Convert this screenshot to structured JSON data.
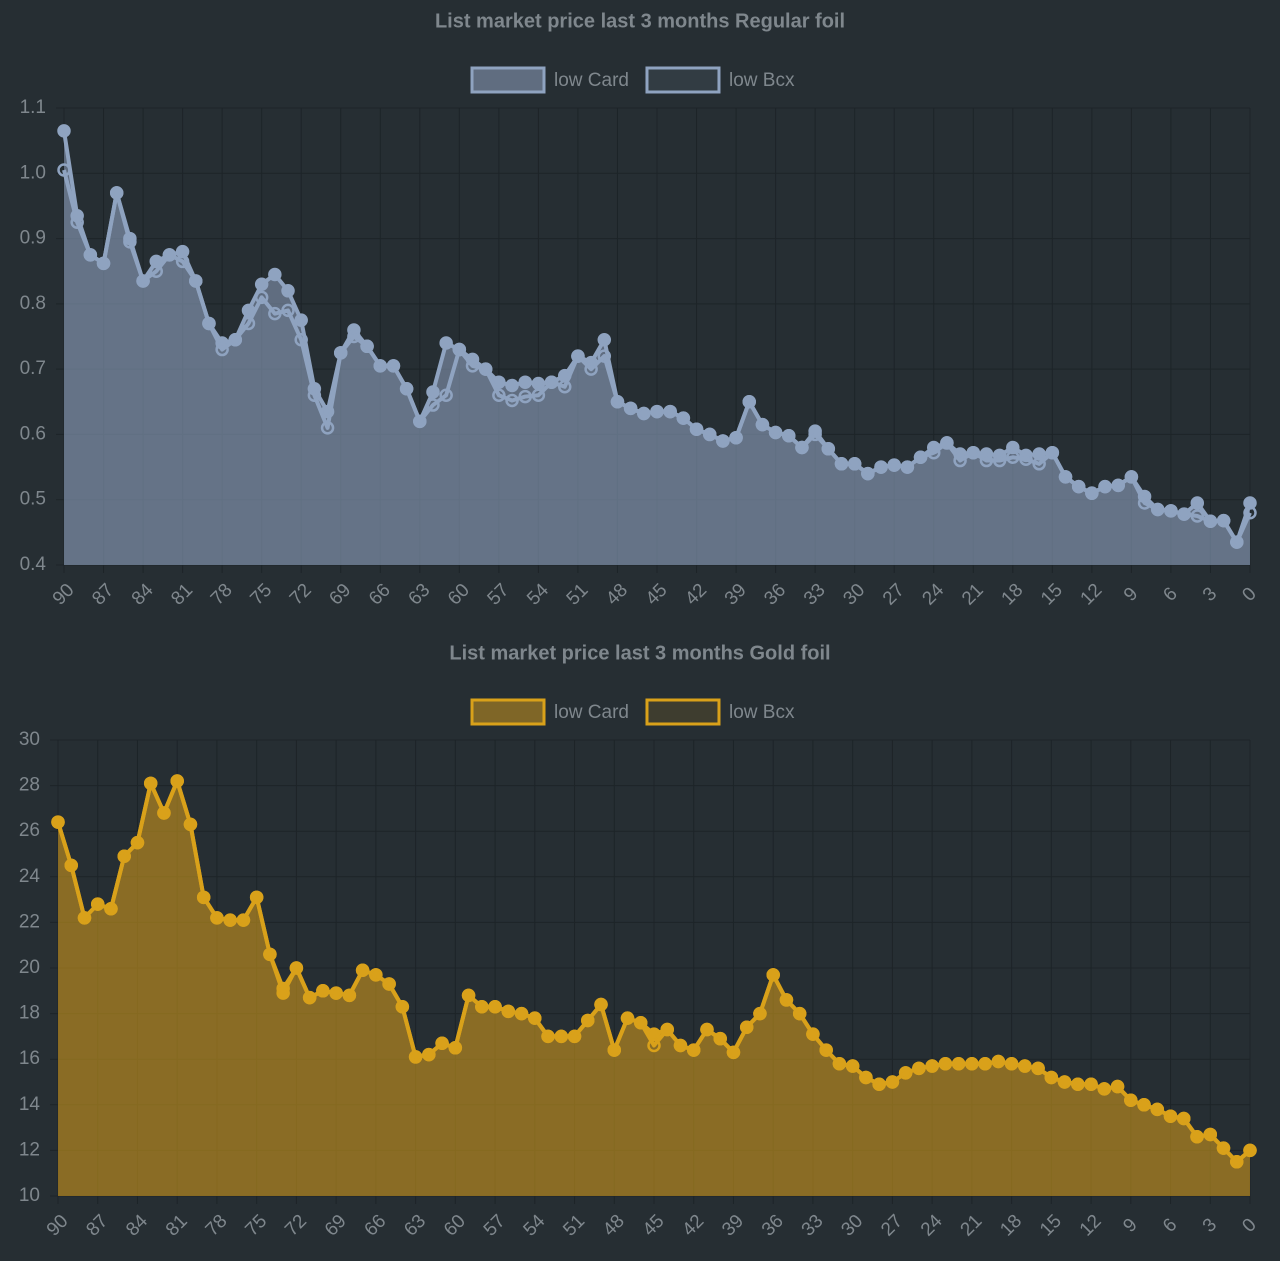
{
  "chart_data": {
    "charts": [
      {
        "type": "line",
        "title": "List market price last 3 months Regular foil",
        "categories": [
          "90",
          null,
          null,
          "87",
          null,
          null,
          "84",
          null,
          null,
          "81",
          null,
          null,
          "78",
          null,
          null,
          "75",
          null,
          null,
          "72",
          null,
          null,
          "69",
          null,
          null,
          "66",
          null,
          null,
          "63",
          null,
          null,
          "60",
          null,
          null,
          "57",
          null,
          null,
          "54",
          null,
          null,
          "51",
          null,
          null,
          "48",
          null,
          null,
          "45",
          null,
          null,
          "42",
          null,
          null,
          "39",
          null,
          null,
          "36",
          null,
          null,
          "33",
          null,
          null,
          "30",
          null,
          null,
          "27",
          null,
          null,
          "24",
          null,
          null,
          "21",
          null,
          null,
          "18",
          null,
          null,
          "15",
          null,
          null,
          "12",
          null,
          null,
          "9",
          null,
          null,
          "6",
          null,
          null,
          "3",
          null,
          null,
          "0"
        ],
        "series": [
          {
            "name": "low Card",
            "color": "#8fa3c0",
            "fill": "rgba(143,163,192,0.55)",
            "values": [
              1.065,
              0.935,
              0.875,
              0.862,
              0.97,
              0.9,
              0.835,
              0.865,
              0.875,
              0.88,
              0.835,
              0.77,
              0.74,
              0.745,
              0.79,
              0.83,
              0.845,
              0.82,
              0.775,
              0.67,
              0.635,
              0.725,
              0.76,
              0.735,
              0.705,
              0.705,
              0.67,
              0.62,
              0.665,
              0.74,
              0.73,
              0.715,
              0.7,
              0.68,
              0.675,
              0.68,
              0.678,
              0.68,
              0.69,
              0.72,
              0.71,
              0.745,
              0.65,
              0.64,
              0.632,
              0.635,
              0.635,
              0.625,
              0.608,
              0.6,
              0.59,
              0.595,
              0.65,
              0.615,
              0.603,
              0.598,
              0.58,
              0.605,
              0.578,
              0.555,
              0.555,
              0.54,
              0.55,
              0.553,
              0.55,
              0.565,
              0.58,
              0.587,
              0.57,
              0.572,
              0.57,
              0.568,
              0.58,
              0.568,
              0.57,
              0.572,
              0.535,
              0.52,
              0.51,
              0.52,
              0.522,
              0.535,
              0.505,
              0.485,
              0.483,
              0.478,
              0.495,
              0.467,
              0.468,
              0.435,
              0.495
            ]
          },
          {
            "name": "low Bcx",
            "color": "#8fa3c0",
            "fill": "rgba(143,163,192,0.12)",
            "values": [
              1.005,
              0.925,
              0.875,
              0.862,
              0.97,
              0.895,
              0.835,
              0.85,
              0.875,
              0.865,
              0.835,
              0.77,
              0.73,
              0.745,
              0.77,
              0.81,
              0.785,
              0.79,
              0.745,
              0.66,
              0.61,
              0.725,
              0.75,
              0.735,
              0.705,
              0.705,
              0.67,
              0.62,
              0.645,
              0.66,
              0.73,
              0.705,
              0.7,
              0.66,
              0.652,
              0.658,
              0.66,
              0.68,
              0.673,
              0.72,
              0.7,
              0.72,
              0.65,
              0.64,
              0.632,
              0.635,
              0.635,
              0.625,
              0.608,
              0.6,
              0.59,
              0.595,
              0.65,
              0.615,
              0.603,
              0.598,
              0.58,
              0.6,
              0.578,
              0.555,
              0.555,
              0.54,
              0.55,
              0.553,
              0.55,
              0.565,
              0.572,
              0.587,
              0.56,
              0.572,
              0.56,
              0.56,
              0.565,
              0.562,
              0.555,
              0.572,
              0.535,
              0.52,
              0.51,
              0.52,
              0.522,
              0.535,
              0.495,
              0.485,
              0.483,
              0.478,
              0.475,
              0.467,
              0.468,
              0.435,
              0.48
            ]
          }
        ],
        "ylim": [
          0.4,
          1.1
        ],
        "yticks": [
          0.4,
          0.5,
          0.6,
          0.7,
          0.8,
          0.9,
          {
            "value": 1,
            "label": "1.0"
          },
          1.1
        ],
        "grid": true
      },
      {
        "type": "line",
        "title": "List market price last 3 months Gold foil",
        "categories": [
          "90",
          null,
          null,
          "87",
          null,
          null,
          "84",
          null,
          null,
          "81",
          null,
          null,
          "78",
          null,
          null,
          "75",
          null,
          null,
          "72",
          null,
          null,
          "69",
          null,
          null,
          "66",
          null,
          null,
          "63",
          null,
          null,
          "60",
          null,
          null,
          "57",
          null,
          null,
          "54",
          null,
          null,
          "51",
          null,
          null,
          "48",
          null,
          null,
          "45",
          null,
          null,
          "42",
          null,
          null,
          "39",
          null,
          null,
          "36",
          null,
          null,
          "33",
          null,
          null,
          "30",
          null,
          null,
          "27",
          null,
          null,
          "24",
          null,
          null,
          "21",
          null,
          null,
          "18",
          null,
          null,
          "15",
          null,
          null,
          "12",
          null,
          null,
          "9",
          null,
          null,
          "6",
          null,
          null,
          "3",
          null,
          null,
          "0"
        ],
        "series": [
          {
            "name": "low Card",
            "color": "#d9a11a",
            "fill": "rgba(200,150,30,0.55)",
            "values": [
              26.4,
              24.5,
              22.2,
              22.8,
              22.6,
              24.9,
              25.5,
              28.1,
              26.8,
              28.2,
              26.3,
              23.1,
              22.2,
              22.1,
              22.1,
              23.1,
              20.6,
              18.9,
              20.0,
              18.7,
              19.0,
              18.9,
              18.8,
              19.9,
              19.7,
              19.3,
              18.3,
              16.1,
              16.2,
              16.7,
              16.5,
              18.8,
              18.3,
              18.3,
              18.1,
              18.0,
              17.8,
              17.0,
              17.0,
              17.0,
              17.7,
              18.4,
              16.4,
              17.8,
              17.6,
              17.1,
              17.3,
              16.6,
              16.4,
              17.3,
              16.9,
              16.3,
              17.4,
              18.0,
              19.7,
              18.6,
              18.0,
              17.1,
              16.4,
              15.8,
              15.7,
              15.2,
              14.9,
              15.0,
              15.4,
              15.6,
              15.7,
              15.8,
              15.8,
              15.8,
              15.8,
              15.9,
              15.8,
              15.7,
              15.6,
              15.2,
              15.0,
              14.9,
              14.9,
              14.7,
              14.8,
              14.2,
              14.0,
              13.8,
              13.5,
              13.4,
              12.6,
              12.7,
              12.1,
              11.5,
              12.0
            ]
          },
          {
            "name": "low Bcx",
            "color": "#d9a11a",
            "fill": "rgba(200,150,30,0.15)",
            "values": [
              26.4,
              24.5,
              22.2,
              22.8,
              22.6,
              24.9,
              25.5,
              28.1,
              26.8,
              28.2,
              26.3,
              23.1,
              22.2,
              22.1,
              22.1,
              23.1,
              20.6,
              19.1,
              20.0,
              18.7,
              19.0,
              18.9,
              18.8,
              19.9,
              19.7,
              19.3,
              18.3,
              16.1,
              16.2,
              16.7,
              16.5,
              18.8,
              18.3,
              18.3,
              18.1,
              18.0,
              17.8,
              17.0,
              17.0,
              17.0,
              17.7,
              18.4,
              16.4,
              17.8,
              17.6,
              16.6,
              17.3,
              16.6,
              16.4,
              17.3,
              16.9,
              16.3,
              17.4,
              18.0,
              19.7,
              18.6,
              18.0,
              17.1,
              16.4,
              15.8,
              15.7,
              15.2,
              14.9,
              15.0,
              15.4,
              15.6,
              15.7,
              15.8,
              15.8,
              15.8,
              15.8,
              15.9,
              15.8,
              15.7,
              15.6,
              15.2,
              15.0,
              14.9,
              14.9,
              14.7,
              14.8,
              14.2,
              14.0,
              13.8,
              13.5,
              13.4,
              12.6,
              12.7,
              12.1,
              11.5,
              12.0
            ]
          }
        ],
        "ylim": [
          10,
          30
        ],
        "yticks": [
          10,
          12,
          14,
          16,
          18,
          20,
          22,
          24,
          26,
          28,
          30
        ],
        "grid": true
      }
    ]
  }
}
